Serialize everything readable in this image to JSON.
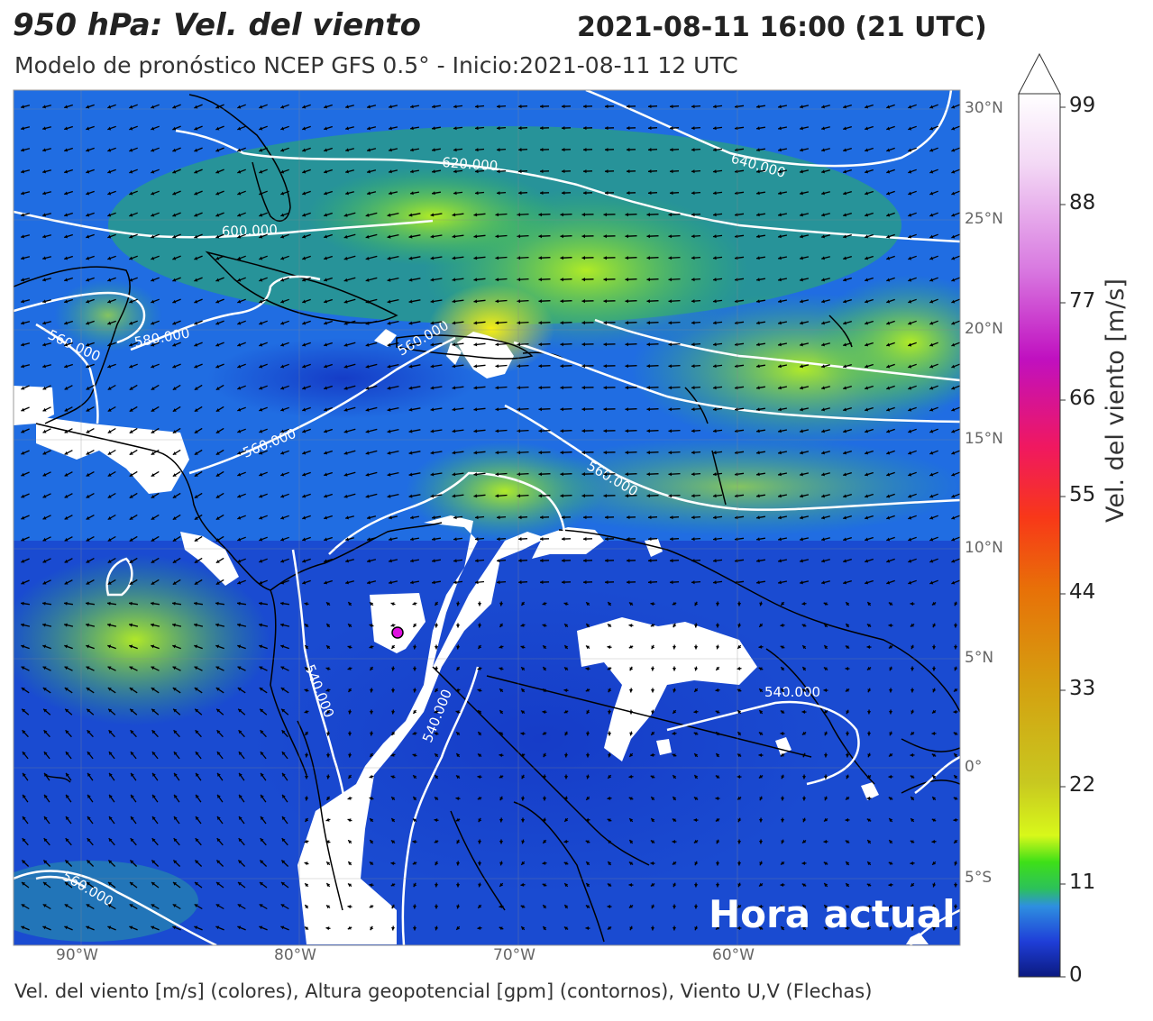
{
  "header": {
    "title": "950 hPa: Vel. del viento",
    "valid_time": "2021-08-11 16:00 (21 UTC)",
    "subtitle": "Modelo de pronóstico NCEP GFS 0.5° - Inicio:2021-08-11 12 UTC"
  },
  "map": {
    "lat_labels": [
      "30°N",
      "25°N",
      "20°N",
      "15°N",
      "10°N",
      "5°N",
      "0°",
      "5°S"
    ],
    "lon_labels": [
      "90°W",
      "80°W",
      "70°W",
      "60°W"
    ],
    "contour_labels": [
      "620.000",
      "640.000",
      "600.000",
      "580.000",
      "560.000",
      "560.000",
      "560.000",
      "560.000",
      "540.000",
      "540.000",
      "540.000",
      "560.000"
    ],
    "badge": "Hora actual",
    "marker_color": "#e010e0"
  },
  "colorbar": {
    "ticks": [
      "99",
      "88",
      "77",
      "66",
      "55",
      "44",
      "33",
      "22",
      "11",
      "0"
    ],
    "label": "Vel. del viento [m/s]"
  },
  "footer": {
    "caption": "Vel. del viento [m/s] (colores), Altura geopotencial [gpm] (contornos), Viento U,V (Flechas)"
  }
}
